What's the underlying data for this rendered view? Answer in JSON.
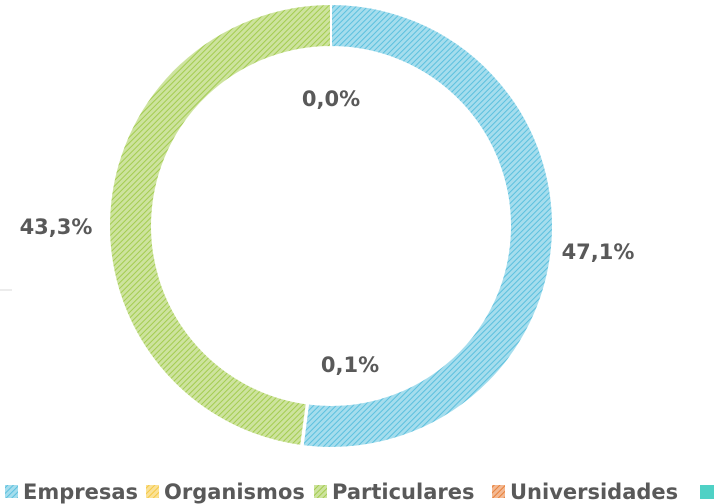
{
  "chart_data": {
    "type": "pie",
    "categories": [
      "Empresas",
      "Organismos",
      "Particulares",
      "Universidades"
    ],
    "values": [
      47.1,
      0.1,
      43.3,
      0.0
    ],
    "value_labels": [
      "47,1%",
      "0,1%",
      "43,3%",
      "0,0%"
    ],
    "colors": [
      "#5bc0de",
      "#f5c842",
      "#a3cc4f",
      "#e8803a"
    ],
    "donut": true
  }
}
